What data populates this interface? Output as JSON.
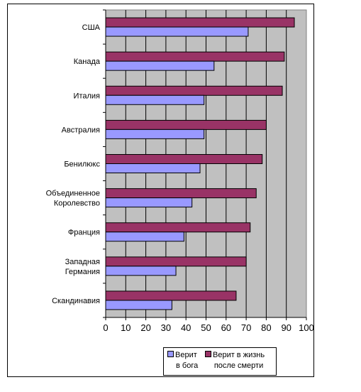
{
  "chart_data": {
    "type": "bar",
    "orientation": "horizontal",
    "categories": [
      "США",
      "Канада",
      "Италия",
      "Австралия",
      "Бенилюкс",
      "Объединенное Королевство",
      "Франция",
      "Западная Германия",
      "Скандинавия"
    ],
    "category_lines": [
      [
        "США"
      ],
      [
        "Канада"
      ],
      [
        "Италия"
      ],
      [
        "Австралия"
      ],
      [
        "Бенилюкс"
      ],
      [
        "Объединенное",
        "Королевство"
      ],
      [
        "Франция"
      ],
      [
        "Западная",
        "Германия"
      ],
      [
        "Скандинавия"
      ]
    ],
    "series": [
      {
        "name": "Верит в бога",
        "legend_lines": [
          "Верит",
          "в бога"
        ],
        "color": "#9999ff",
        "values": [
          71,
          54,
          49,
          49,
          47,
          43,
          39,
          35,
          33
        ]
      },
      {
        "name": "Верит в жизнь после смерти",
        "legend_lines": [
          "Верит в жизнь",
          "после смерти"
        ],
        "color": "#993366",
        "values": [
          94,
          89,
          88,
          80,
          78,
          75,
          72,
          70,
          65
        ]
      }
    ],
    "xlim": [
      0,
      100
    ],
    "xticks": [
      "0",
      "10",
      "20",
      "30",
      "40",
      "50",
      "60",
      "70",
      "80",
      "90",
      "100"
    ],
    "plot_background": "#c0c0c0",
    "grid": true,
    "legend_position": "bottom"
  }
}
